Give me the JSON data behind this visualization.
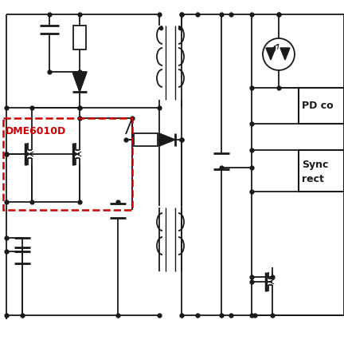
{
  "bg_color": "#ffffff",
  "line_color": "#1a1a1a",
  "red_color": "#cc0000",
  "text_DME": "DME6010D",
  "text_PD": "PD co",
  "text_Sync1": "Sync",
  "text_Sync2": "rect",
  "fig_width": 4.32,
  "fig_height": 4.36,
  "dpi": 100
}
